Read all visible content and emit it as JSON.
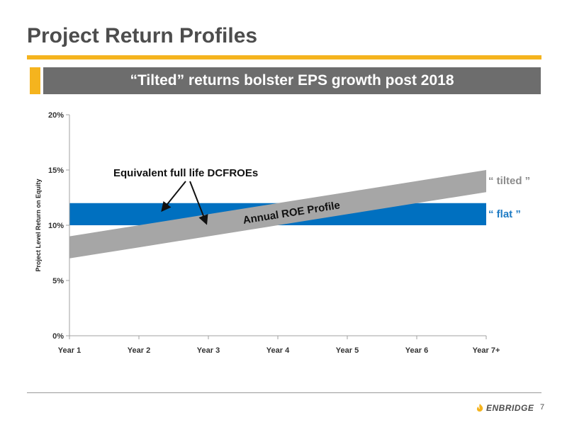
{
  "slide": {
    "title": "Project Return Profiles",
    "banner": "“Tilted” returns bolster EPS growth post 2018",
    "page_number": "7",
    "logo_text": "ENBRIDGE"
  },
  "colors": {
    "accent": "#f5b41e",
    "banner_bg": "#6d6d6d",
    "flat_band": "#0070c0",
    "tilted_band": "#a6a6a6",
    "flat_label": "#1e7bc4",
    "tilted_label": "#8c8c8c"
  },
  "chart_data": {
    "type": "area",
    "categories": [
      "Year 1",
      "Year 2",
      "Year 3",
      "Year 4",
      "Year 5",
      "Year 6",
      "Year 7+"
    ],
    "ylabel": "Project Level Return on Equity",
    "ylim": [
      0,
      20
    ],
    "yticks": [
      0,
      5,
      10,
      15,
      20
    ],
    "ytick_labels": [
      "0%",
      "5%",
      "10%",
      "15%",
      "20%"
    ],
    "grid": false,
    "series": [
      {
        "key": "flat",
        "name": "“ flat ”",
        "lower": [
          10,
          10,
          10,
          10,
          10,
          10,
          10
        ],
        "upper": [
          12,
          12,
          12,
          12,
          12,
          12,
          12
        ]
      },
      {
        "key": "tilted",
        "name": "“ tilted ”",
        "lower": [
          7,
          8,
          9,
          10,
          11,
          12,
          13
        ],
        "upper": [
          9,
          10,
          11,
          12,
          13,
          14,
          15
        ]
      }
    ],
    "annotations": {
      "band_label": "Annual ROE Profile",
      "callout": "Equivalent full life DCFROEs"
    }
  }
}
